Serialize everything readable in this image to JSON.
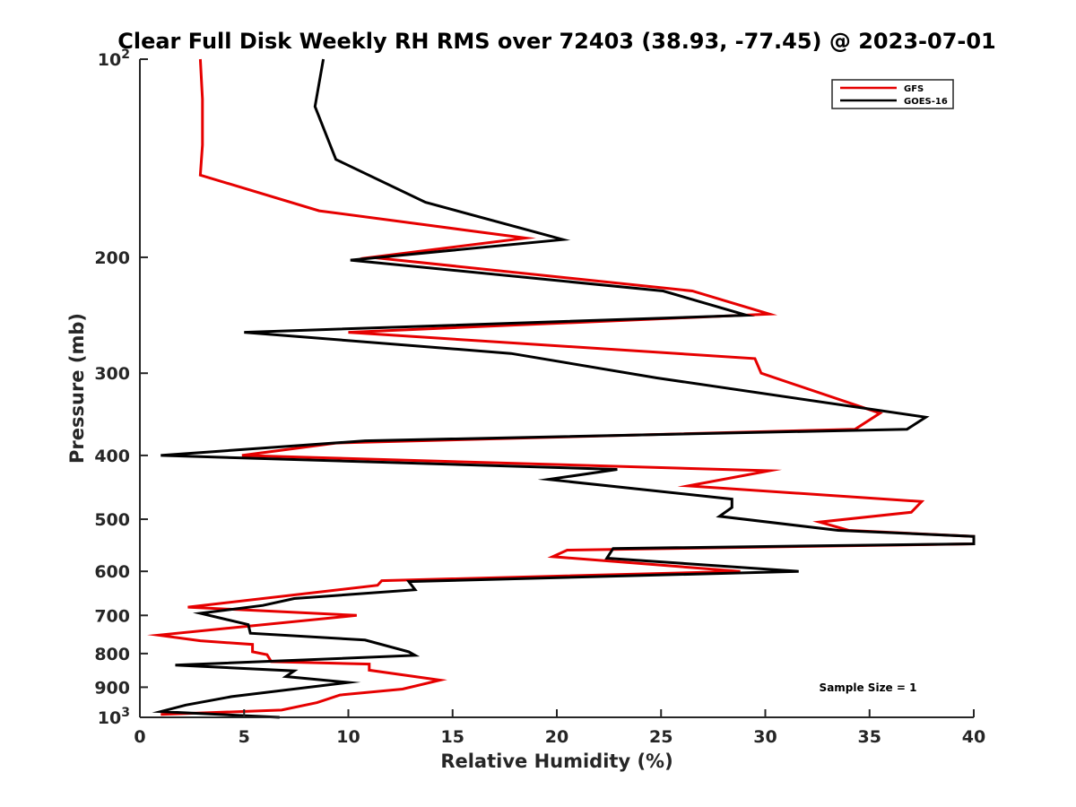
{
  "chart_data": {
    "type": "line",
    "title": "Clear Full Disk Weekly RH RMS over 72403 (38.93, -77.45) @ 2023-07-01",
    "xlabel": "Relative Humidity (%)",
    "ylabel": "Pressure (mb)",
    "xlim": [
      0,
      40
    ],
    "ylim": [
      100,
      1000
    ],
    "y_scale": "log",
    "y_reversed": true,
    "grid": false,
    "legend_position": "top-right",
    "x_ticks": [
      0,
      5,
      10,
      15,
      20,
      25,
      30,
      35,
      40
    ],
    "y_ticks": [
      {
        "value": 100,
        "base": "10",
        "exp": "2"
      },
      {
        "value": 200,
        "label": "200"
      },
      {
        "value": 300,
        "label": "300"
      },
      {
        "value": 400,
        "label": "400"
      },
      {
        "value": 500,
        "label": "500"
      },
      {
        "value": 600,
        "label": "600"
      },
      {
        "value": 700,
        "label": "700"
      },
      {
        "value": 800,
        "label": "800"
      },
      {
        "value": 900,
        "label": "900"
      },
      {
        "value": 1000,
        "base": "10",
        "exp": "3"
      }
    ],
    "annotation": "Sample Size = 1",
    "series": [
      {
        "name": "GFS",
        "color": "#e60000",
        "points": [
          [
            2.9,
            100
          ],
          [
            3.0,
            115
          ],
          [
            3.0,
            135
          ],
          [
            2.9,
            150
          ],
          [
            8.6,
            170
          ],
          [
            18.5,
            187
          ],
          [
            11.1,
            200
          ],
          [
            26.5,
            225
          ],
          [
            30.2,
            244
          ],
          [
            10.0,
            260
          ],
          [
            29.5,
            285
          ],
          [
            29.8,
            300
          ],
          [
            35.5,
            345
          ],
          [
            34.3,
            365
          ],
          [
            9.4,
            383
          ],
          [
            4.9,
            400
          ],
          [
            30.2,
            422
          ],
          [
            26.3,
            445
          ],
          [
            37.5,
            470
          ],
          [
            37.0,
            488
          ],
          [
            32.6,
            505
          ],
          [
            34.0,
            520
          ],
          [
            40.0,
            531
          ],
          [
            40.0,
            545
          ],
          [
            20.5,
            557
          ],
          [
            19.8,
            570
          ],
          [
            28.8,
            600
          ],
          [
            11.6,
            620
          ],
          [
            11.4,
            630
          ],
          [
            2.3,
            680
          ],
          [
            10.4,
            700
          ],
          [
            0.9,
            750
          ],
          [
            2.9,
            765
          ],
          [
            5.4,
            775
          ],
          [
            5.4,
            795
          ],
          [
            6.1,
            803
          ],
          [
            6.3,
            823
          ],
          [
            11.0,
            830
          ],
          [
            11.0,
            848
          ],
          [
            14.4,
            878
          ],
          [
            12.6,
            906
          ],
          [
            9.6,
            925
          ],
          [
            8.5,
            950
          ],
          [
            6.8,
            975
          ],
          [
            1.0,
            990
          ]
        ]
      },
      {
        "name": "GOES-16",
        "color": "#000000",
        "points": [
          [
            8.8,
            100
          ],
          [
            8.4,
            118
          ],
          [
            9.4,
            142
          ],
          [
            13.7,
            165
          ],
          [
            20.3,
            188
          ],
          [
            10.1,
            202
          ],
          [
            25.1,
            225
          ],
          [
            29.1,
            245
          ],
          [
            5.0,
            260
          ],
          [
            17.8,
            280
          ],
          [
            24.8,
            305
          ],
          [
            37.7,
            350
          ],
          [
            36.8,
            365
          ],
          [
            10.8,
            380
          ],
          [
            1.0,
            400
          ],
          [
            22.9,
            420
          ],
          [
            19.6,
            435
          ],
          [
            28.4,
            466
          ],
          [
            28.4,
            480
          ],
          [
            27.8,
            495
          ],
          [
            33.5,
            520
          ],
          [
            40.0,
            531
          ],
          [
            40.0,
            545
          ],
          [
            22.7,
            554
          ],
          [
            22.4,
            573
          ],
          [
            31.6,
            600
          ],
          [
            12.9,
            622
          ],
          [
            13.2,
            640
          ],
          [
            7.4,
            660
          ],
          [
            5.9,
            676
          ],
          [
            2.9,
            695
          ],
          [
            5.2,
            723
          ],
          [
            5.3,
            745
          ],
          [
            10.8,
            763
          ],
          [
            12.9,
            795
          ],
          [
            13.2,
            805
          ],
          [
            1.7,
            833
          ],
          [
            7.4,
            850
          ],
          [
            7.0,
            867
          ],
          [
            10.0,
            885
          ],
          [
            4.4,
            930
          ],
          [
            2.2,
            958
          ],
          [
            1.0,
            980
          ],
          [
            6.7,
            1000
          ]
        ]
      }
    ]
  }
}
